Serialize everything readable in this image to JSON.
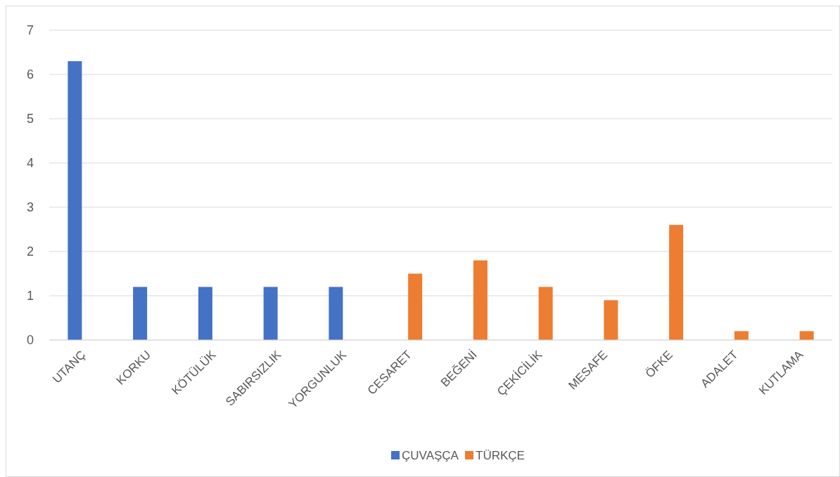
{
  "chart_data": {
    "type": "bar",
    "categories": [
      "UTANÇ",
      "KORKU",
      "KÖTÜLÜK",
      "SABIRSIZLIK",
      "YORGUNLUK",
      "CESARET",
      "BEĞENİ",
      "ÇEKİCİLİK",
      "MESAFE",
      "ÖFKE",
      "ADALET",
      "KUTLAMA"
    ],
    "series": [
      {
        "name": "ÇUVAŞÇA",
        "color": "#4472c4",
        "values": [
          6.3,
          1.2,
          1.2,
          1.2,
          1.2,
          null,
          null,
          null,
          null,
          null,
          null,
          null
        ]
      },
      {
        "name": "TÜRKÇE",
        "color": "#ed7d31",
        "values": [
          null,
          null,
          null,
          null,
          null,
          1.5,
          1.8,
          1.2,
          0.9,
          2.6,
          0.2,
          0.2
        ]
      }
    ],
    "ylim": [
      0,
      7
    ],
    "yticks": [
      0,
      1,
      2,
      3,
      4,
      5,
      6,
      7
    ],
    "grid": "y",
    "legend": "bottom"
  }
}
